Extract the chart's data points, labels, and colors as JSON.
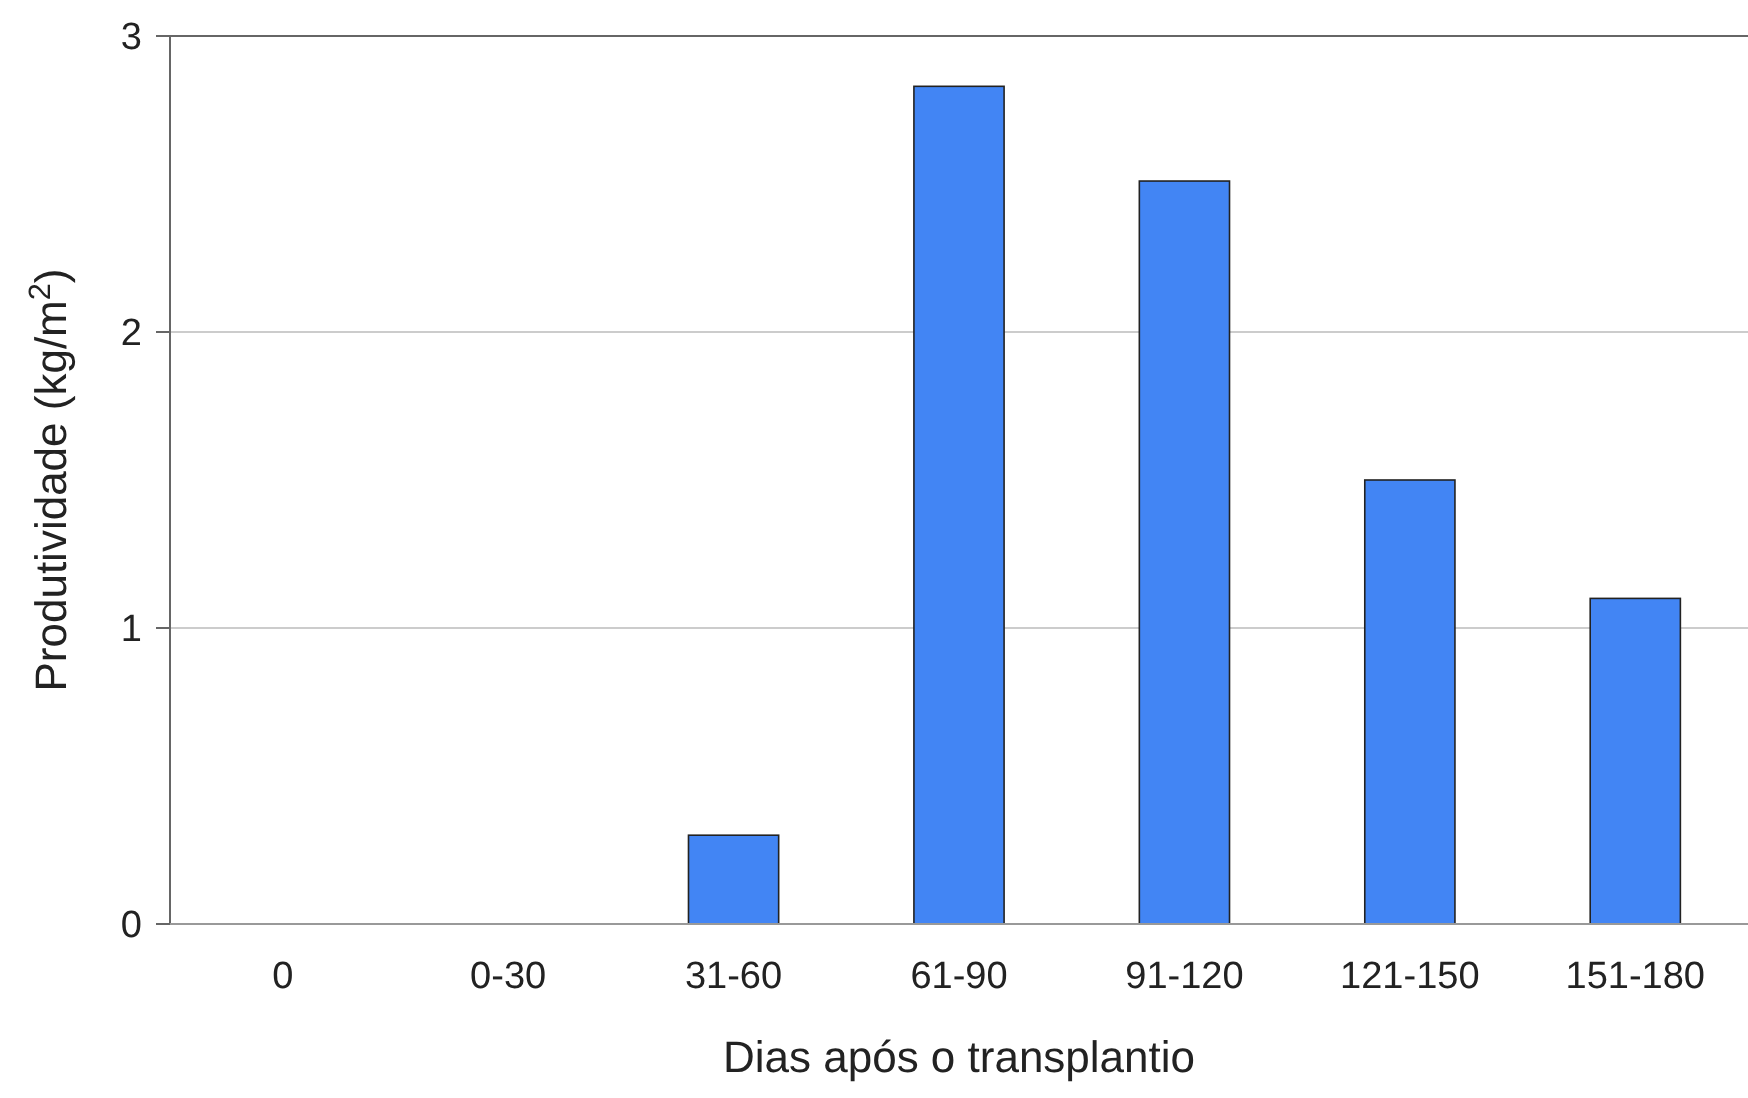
{
  "chart_data": {
    "type": "bar",
    "xlabel": "Dias após o transplantio",
    "ylabel": "Produtividade  (kg/m$^{2}$)",
    "categories": [
      "0",
      "0-30",
      "31-60",
      "61-90",
      "91-120",
      "121-150",
      "151-180"
    ],
    "values": [
      0,
      0,
      0.3,
      2.83,
      2.51,
      1.5,
      1.1
    ],
    "color": "#4285f4",
    "ylim": [
      0,
      3
    ],
    "yticks": [
      0,
      1,
      2,
      3
    ],
    "grid": "y"
  }
}
